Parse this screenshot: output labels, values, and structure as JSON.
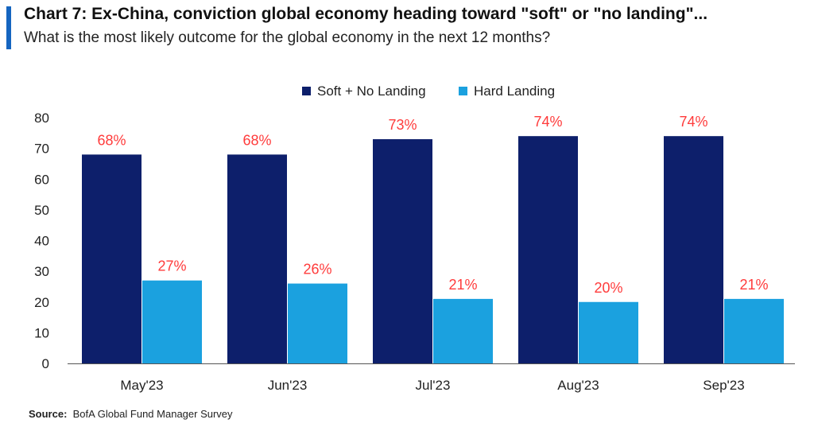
{
  "header": {
    "title": "Chart 7: Ex-China, conviction global economy heading toward \"soft\" or \"no landing\"...",
    "subtitle": "What is the most likely outcome for the global economy in the next 12 months?"
  },
  "footer": {
    "source_label": "Source:",
    "source_text": "BofA Global Fund Manager Survey"
  },
  "colors": {
    "accent": "#1565c0",
    "soft_no_landing": "#0d1f6b",
    "hard_landing": "#1ba1df",
    "data_label": "#ff3b3b",
    "axis_text": "#222222"
  },
  "chart_data": {
    "type": "bar",
    "categories": [
      "May'23",
      "Jun'23",
      "Jul'23",
      "Aug'23",
      "Sep'23"
    ],
    "series": [
      {
        "name": "Soft + No Landing",
        "values": [
          68,
          68,
          73,
          74,
          74
        ],
        "labels": [
          "68%",
          "68%",
          "73%",
          "74%",
          "74%"
        ]
      },
      {
        "name": "Hard Landing",
        "values": [
          27,
          26,
          21,
          20,
          21
        ],
        "labels": [
          "27%",
          "26%",
          "21%",
          "20%",
          "21%"
        ]
      }
    ],
    "ylim": [
      0,
      80
    ],
    "yticks": [
      0,
      10,
      20,
      30,
      40,
      50,
      60,
      70,
      80
    ],
    "legend_position": "top-center",
    "grid": false
  }
}
